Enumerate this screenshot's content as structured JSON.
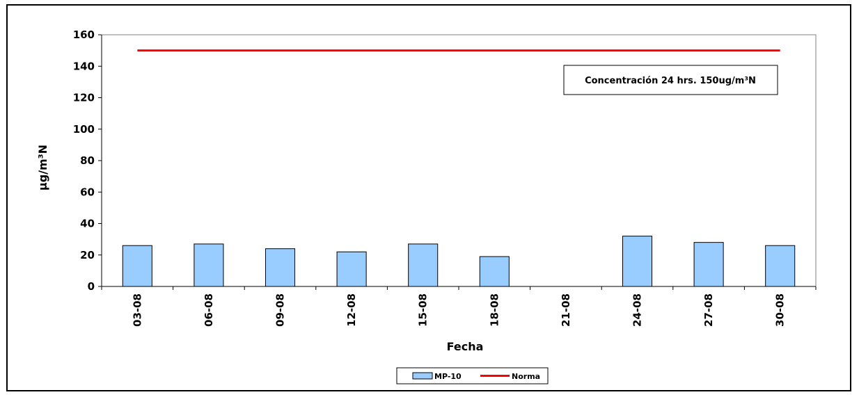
{
  "chart_data": {
    "type": "bar",
    "categories": [
      "03-08",
      "06-08",
      "09-08",
      "12-08",
      "15-08",
      "18-08",
      "21-08",
      "24-08",
      "27-08",
      "30-08"
    ],
    "series": [
      {
        "name": "MP-10",
        "type": "bar",
        "values": [
          26,
          27,
          24,
          22,
          27,
          19,
          null,
          32,
          28,
          26
        ],
        "color": "#99ccff"
      },
      {
        "name": "Norma",
        "type": "line",
        "values": [
          150,
          150,
          150,
          150,
          150,
          150,
          150,
          150,
          150,
          150
        ],
        "color": "#ff0000"
      }
    ],
    "xlabel": "Fecha",
    "ylabel": "µg/m³N",
    "ylim": [
      0,
      160
    ],
    "yticks": [
      0,
      20,
      40,
      60,
      80,
      100,
      120,
      140,
      160
    ],
    "annotation": "Concentración 24 hrs. 150ug/m³N",
    "legend": {
      "position": "bottom",
      "entries": [
        "MP-10",
        "Norma"
      ]
    },
    "grid": false
  }
}
